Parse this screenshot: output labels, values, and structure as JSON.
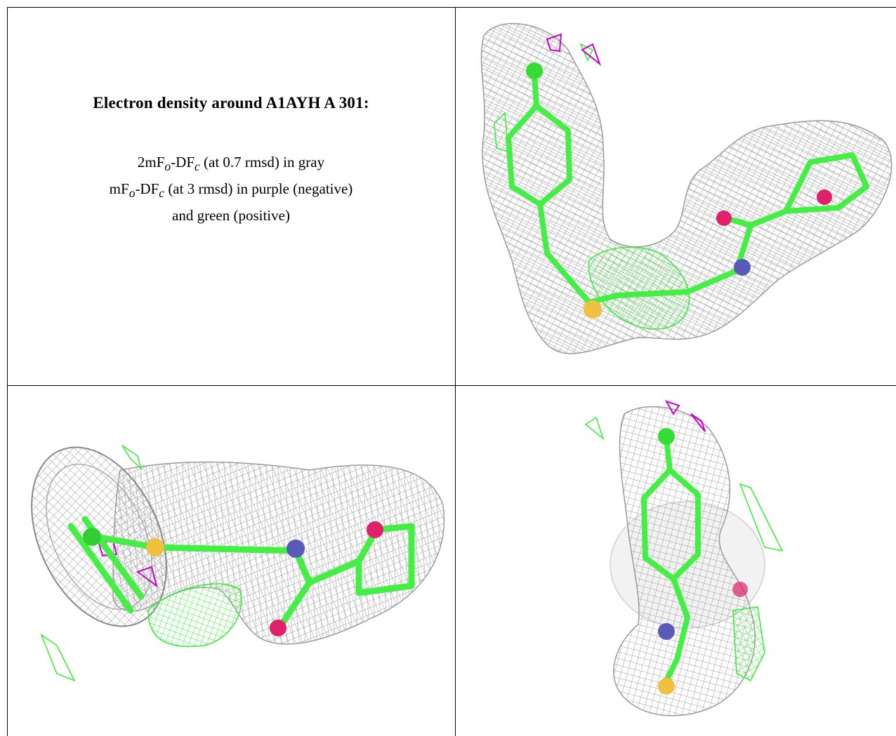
{
  "caption": {
    "title": "Electron density around A1AYH A 301:",
    "line1_prefix": "2mF",
    "line1_sub1": "o",
    "line1_mid": "-DF",
    "line1_sub2": "c",
    "line1_suffix": " (at 0.7 rmsd) in gray",
    "line2_prefix": "mF",
    "line2_sub1": "o",
    "line2_mid": "-DF",
    "line2_sub2": "c",
    "line2_suffix": " (at 3 rmsd) in purple (negative)",
    "line3": "and green (positive)"
  },
  "colors": {
    "mesh_2fofc": "#9a9a9a",
    "mesh_negative": "#cc00cc",
    "mesh_positive": "#33ee33",
    "carbon": "#44ee44",
    "chlorine": "#33dd33",
    "sulfur": "#f0c040",
    "nitrogen": "#5a5ab8",
    "oxygen": "#e0206a"
  },
  "panels": [
    {
      "view": "top-right",
      "icon": "ligand-density-view-1"
    },
    {
      "view": "bottom-left",
      "icon": "ligand-density-view-2"
    },
    {
      "view": "bottom-right",
      "icon": "ligand-density-view-3"
    }
  ]
}
